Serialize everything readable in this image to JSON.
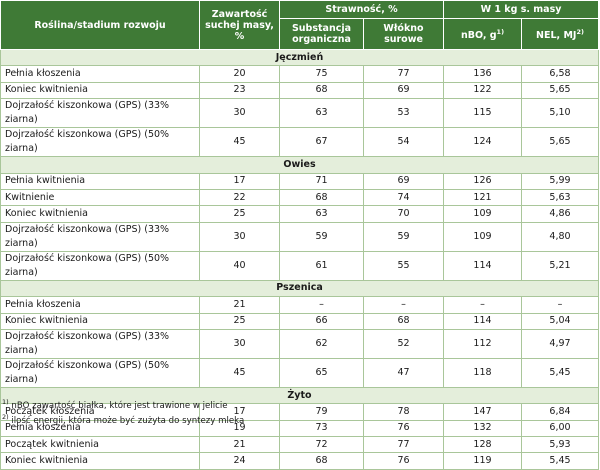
{
  "header": {
    "plant": "Roślina/stadium rozwoju",
    "dry_matter": "Zawartość suchej masy, %",
    "digestibility": "Strawność, %",
    "per_kg": "W 1 kg s. masy",
    "subcolumns": [
      {
        "text": "Substancja organiczna"
      },
      {
        "text": "Włókno surowe"
      },
      {
        "text": "nBO, g",
        "note": "1)"
      },
      {
        "text": "NEL, MJ",
        "note": "2)"
      }
    ]
  },
  "sections": [
    {
      "name": "Jęczmień",
      "rows": [
        [
          "Pełnia kłoszenia",
          "20",
          "75",
          "77",
          "136",
          "6,58"
        ],
        [
          "Koniec kwitnienia",
          "23",
          "68",
          "69",
          "122",
          "5,65"
        ],
        [
          "Dojrzałość kiszonkowa (GPS) (33% ziarna)",
          "30",
          "63",
          "53",
          "115",
          "5,10"
        ],
        [
          "Dojrzałość kiszonkowa (GPS) (50% ziarna)",
          "45",
          "67",
          "54",
          "124",
          "5,65"
        ]
      ]
    },
    {
      "name": "Owies",
      "rows": [
        [
          "Pełnia kwitnienia",
          "17",
          "71",
          "69",
          "126",
          "5,99"
        ],
        [
          "Kwitnienie",
          "22",
          "68",
          "74",
          "121",
          "5,63"
        ],
        [
          "Koniec kwitnienia",
          "25",
          "63",
          "70",
          "109",
          "4,86"
        ],
        [
          "Dojrzałość kiszonkowa (GPS) (33% ziarna)",
          "30",
          "59",
          "59",
          "109",
          "4,80"
        ],
        [
          "Dojrzałość kiszonkowa (GPS) (50% ziarna)",
          "40",
          "61",
          "55",
          "114",
          "5,21"
        ]
      ]
    },
    {
      "name": "Pszenica",
      "rows": [
        [
          "Pełnia kłoszenia",
          "21",
          "–",
          "–",
          "–",
          "–"
        ],
        [
          "Koniec kwitnienia",
          "25",
          "66",
          "68",
          "114",
          "5,04"
        ],
        [
          "Dojrzałość kiszonkowa (GPS) (33% ziarna)",
          "30",
          "62",
          "52",
          "112",
          "4,97"
        ],
        [
          "Dojrzałość kiszonkowa (GPS) (50% ziarna)",
          "45",
          "65",
          "47",
          "118",
          "5,45"
        ]
      ]
    },
    {
      "name": "Żyto",
      "rows": [
        [
          "Początek kłoszenia",
          "17",
          "79",
          "78",
          "147",
          "6,84"
        ],
        [
          "Pełnia kłoszenia",
          "19",
          "73",
          "76",
          "132",
          "6,00"
        ],
        [
          "Początek kwitnienia",
          "21",
          "72",
          "77",
          "128",
          "5,93"
        ],
        [
          "Koniec kwitnienia",
          "24",
          "68",
          "76",
          "119",
          "5,45"
        ]
      ]
    }
  ],
  "footnotes": [
    {
      "mark": "1)",
      "text": "nBO zawartość białka, które jest trawione w jelicie"
    },
    {
      "mark": "2)",
      "text": "ilość energii, która może być zużyta do syntezy mleka"
    }
  ]
}
